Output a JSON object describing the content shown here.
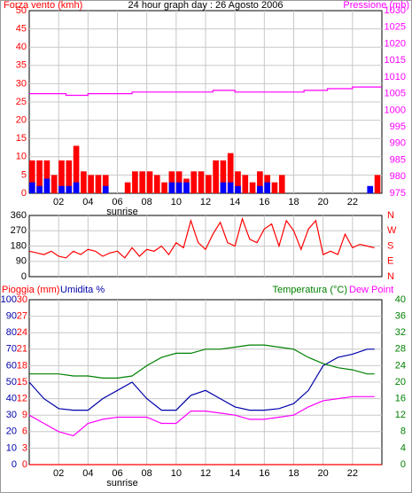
{
  "chart_data": [
    {
      "type": "bar",
      "title": "24 hour graph day : 26 Agosto 2006",
      "ylabel": "Forza vento (kmh)",
      "y2label": "Pressione (mb)",
      "annotation": "sunrise",
      "xlim": [
        0,
        24
      ],
      "xticks": [
        {
          "value": 2,
          "label": "02"
        },
        {
          "value": 4,
          "label": "04"
        },
        {
          "value": 6,
          "label": "06"
        },
        {
          "value": 8,
          "label": "08"
        },
        10,
        12,
        14,
        16,
        18,
        20,
        22
      ],
      "ylim": [
        0,
        50
      ],
      "yticks": [
        0,
        5,
        10,
        15,
        20,
        25,
        30,
        35,
        40,
        45,
        50
      ],
      "y2lim": [
        975,
        1030
      ],
      "y2ticks": [
        975,
        980,
        985,
        990,
        995,
        1000,
        1005,
        1010,
        1015,
        1020,
        1025,
        1030
      ],
      "x": [
        0,
        0.5,
        1,
        1.5,
        2,
        2.5,
        3,
        3.5,
        4,
        4.5,
        5,
        5.5,
        6,
        6.5,
        7,
        7.5,
        8,
        8.5,
        9,
        9.5,
        10,
        10.5,
        11,
        11.5,
        12,
        12.5,
        13,
        13.5,
        14,
        14.5,
        15,
        15.5,
        16,
        16.5,
        17,
        17.5,
        18,
        18.5,
        19,
        19.5,
        20,
        20.5,
        21,
        21.5,
        22,
        22.5,
        23,
        23.5
      ],
      "series": [
        {
          "color": "#ff0000",
          "values": [
            9,
            9,
            9,
            5,
            9,
            9,
            13,
            6,
            5,
            5,
            5,
            0,
            0,
            3,
            6,
            6,
            6,
            5,
            3,
            6,
            6,
            4,
            6,
            6,
            5,
            9,
            9,
            11,
            6,
            5,
            3,
            6,
            5,
            3,
            5,
            0,
            0,
            0,
            0,
            0,
            0,
            0,
            0,
            0,
            0,
            0,
            0,
            5
          ]
        },
        {
          "color": "#0000ff",
          "values": [
            3,
            2,
            4,
            0,
            2,
            2,
            3,
            0,
            0,
            0,
            2,
            0,
            0,
            0,
            0,
            0,
            0,
            0,
            0,
            3,
            3,
            3,
            0,
            0,
            0,
            0,
            3,
            3,
            2,
            0,
            0,
            2,
            3,
            0,
            0,
            0,
            0,
            0,
            0,
            0,
            0,
            0,
            0,
            0,
            0,
            0,
            2,
            0
          ]
        },
        {
          "type": "line",
          "axis": "y2",
          "color": "#ff00ff",
          "x": [
            0,
            2.5,
            2.5,
            4,
            4,
            7,
            7,
            12.5,
            12.5,
            14,
            14,
            18.7,
            18.7,
            20.3,
            20.3,
            22,
            22,
            24
          ],
          "values": [
            1005,
            1005,
            1004.5,
            1004.5,
            1005,
            1005,
            1005.5,
            1005.5,
            1006,
            1006,
            1005.5,
            1005.5,
            1006,
            1006,
            1006.5,
            1006.5,
            1007,
            1007
          ]
        }
      ]
    },
    {
      "type": "line",
      "xlim": [
        0,
        24
      ],
      "ylim": [
        0,
        360
      ],
      "yticks": [
        0,
        90,
        180,
        270,
        360
      ],
      "y2lim": [
        0,
        360
      ],
      "y2ticks": [
        {
          "value": 0,
          "label": "N"
        },
        {
          "value": 90,
          "label": "E"
        },
        {
          "value": 180,
          "label": "S"
        },
        {
          "value": 270,
          "label": "W"
        },
        {
          "value": 360,
          "label": "N"
        }
      ],
      "series": [
        {
          "color": "#ff0000",
          "x": [
            0,
            0.5,
            1,
            1.5,
            2,
            2.5,
            3,
            3.5,
            4,
            4.5,
            5,
            5.5,
            6,
            6.5,
            7,
            7.5,
            8,
            8.5,
            9,
            9.5,
            10,
            10.5,
            11,
            11.5,
            12,
            12.5,
            13,
            13.5,
            14,
            14.5,
            15,
            15.5,
            16,
            16.5,
            17,
            17.5,
            18,
            18.5,
            19,
            19.5,
            20,
            20.5,
            21,
            21.5,
            22,
            22.5,
            23,
            23.5
          ],
          "values": [
            150,
            140,
            130,
            150,
            120,
            110,
            150,
            130,
            160,
            150,
            120,
            140,
            150,
            110,
            170,
            120,
            160,
            150,
            180,
            130,
            200,
            170,
            330,
            200,
            160,
            250,
            320,
            200,
            180,
            340,
            220,
            200,
            280,
            310,
            180,
            330,
            270,
            160,
            280,
            330,
            130,
            150,
            130,
            250,
            170,
            190,
            180,
            170
          ]
        }
      ]
    },
    {
      "type": "line",
      "ylabel": "Pioggia (mm)",
      "ylabel2": "Umidita %",
      "y2label": "Temperatura (°C)",
      "y2label2": "Dew Point",
      "annotation": "sunrise",
      "xlim": [
        0,
        24
      ],
      "xticks": [
        {
          "value": 2,
          "label": "02"
        },
        {
          "value": 4,
          "label": "04"
        },
        {
          "value": 6,
          "label": "06"
        },
        {
          "value": 8,
          "label": "08"
        },
        10,
        12,
        14,
        16,
        18,
        20,
        22
      ],
      "ylim": [
        0,
        100
      ],
      "yticks": [
        0,
        10,
        20,
        30,
        40,
        50,
        60,
        70,
        80,
        90,
        100
      ],
      "y3lim": [
        0,
        30
      ],
      "y3ticks": [
        0,
        3,
        6,
        9,
        12,
        15,
        18,
        21,
        24,
        27,
        30
      ],
      "y2lim": [
        0,
        40
      ],
      "y2ticks": [
        0,
        4,
        8,
        12,
        16,
        20,
        24,
        28,
        32,
        36,
        40
      ],
      "series": [
        {
          "color": "#0000aa",
          "x": [
            0,
            1,
            2,
            3,
            4,
            5,
            6,
            7,
            8,
            9,
            10,
            11,
            12,
            13,
            14,
            15,
            16,
            17,
            18,
            19,
            20,
            21,
            22,
            23,
            23.5
          ],
          "values": [
            50,
            40,
            34,
            33,
            33,
            40,
            45,
            50,
            40,
            33,
            33,
            42,
            45,
            40,
            35,
            33,
            33,
            34,
            37,
            45,
            60,
            65,
            67,
            70,
            70
          ]
        },
        {
          "color": "#008000",
          "axis": "y2",
          "x": [
            0,
            1,
            2,
            3,
            4,
            5,
            6,
            7,
            8,
            9,
            10,
            11,
            12,
            13,
            14,
            15,
            16,
            17,
            18,
            19,
            20,
            21,
            22,
            23,
            23.5
          ],
          "values": [
            22,
            22,
            22,
            21.5,
            21.5,
            21,
            21,
            21.5,
            24,
            26,
            27,
            27,
            28,
            28,
            28.5,
            29,
            29,
            28.5,
            28,
            26,
            24.5,
            23.5,
            23,
            22,
            22
          ]
        },
        {
          "color": "#ff00ff",
          "axis": "y2",
          "x": [
            0,
            1,
            2,
            3,
            4,
            5,
            6,
            7,
            8,
            9,
            10,
            11,
            12,
            13,
            14,
            15,
            16,
            17,
            18,
            19,
            20,
            21,
            22,
            23,
            23.5
          ],
          "values": [
            12,
            10,
            8,
            7,
            10,
            11,
            11.5,
            11.5,
            11.5,
            10,
            10,
            13,
            13,
            12.5,
            12,
            11,
            11,
            11.5,
            12,
            14,
            15.5,
            16,
            16.5,
            16.5,
            16.5
          ]
        },
        {
          "color": "#ff0000",
          "axis": "y3",
          "x": [
            0,
            24
          ],
          "values": [
            0,
            0
          ]
        }
      ]
    }
  ]
}
